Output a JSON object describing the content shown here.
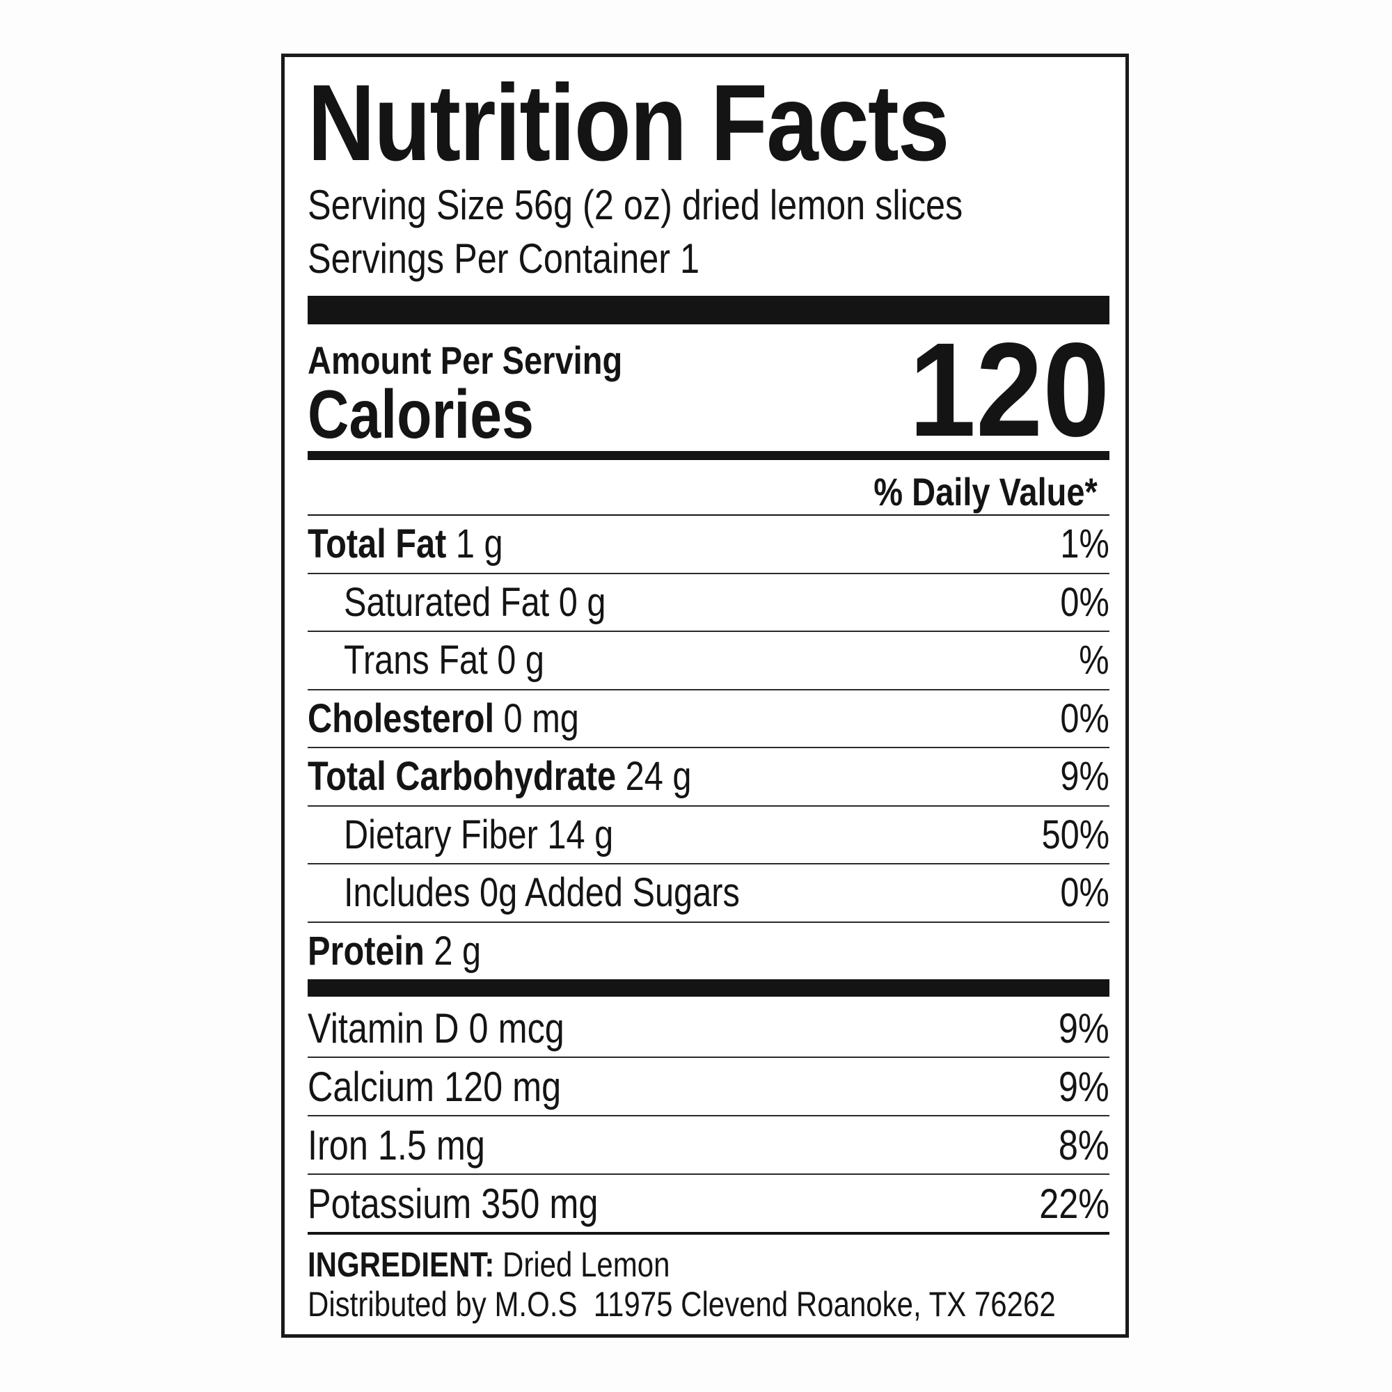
{
  "title": "Nutrition Facts",
  "serving_size": "Serving Size 56g (2 oz) dried lemon slices",
  "servings_per_container": "Servings Per Container 1",
  "amount_per_serving": "Amount Per Serving",
  "calories_label": "Calories",
  "calories_value": "120",
  "daily_value_header": "% Daily Value*",
  "nutrients": [
    {
      "name": "Total Fat",
      "amount": "1 g",
      "dv": "1%",
      "bold": true,
      "indent": false
    },
    {
      "name": "Saturated Fat",
      "amount": "0 g",
      "dv": "0%",
      "bold": false,
      "indent": true
    },
    {
      "name": "Trans Fat",
      "amount": "0 g",
      "dv": "%",
      "bold": false,
      "indent": true
    },
    {
      "name": "Cholesterol",
      "amount": "0 mg",
      "dv": "0%",
      "bold": true,
      "indent": false
    },
    {
      "name": "Total Carbohydrate",
      "amount": "24 g",
      "dv": "9%",
      "bold": true,
      "indent": false
    },
    {
      "name": "Dietary Fiber",
      "amount": "14 g",
      "dv": "50%",
      "bold": false,
      "indent": true
    },
    {
      "name": "Includes",
      "amount": "0g Added Sugars",
      "dv": "0%",
      "bold": false,
      "indent": true
    },
    {
      "name": "Protein",
      "amount": "2 g",
      "dv": "",
      "bold": true,
      "indent": false
    }
  ],
  "vitamins": [
    {
      "label": "Vitamin D 0 mcg",
      "dv": "9%"
    },
    {
      "label": "Calcium 120 mg",
      "dv": "9%"
    },
    {
      "label": "Iron 1.5 mg",
      "dv": "8%"
    },
    {
      "label": "Potassium 350 mg",
      "dv": "22%"
    }
  ],
  "ingredient_label": "INGREDIENT:",
  "ingredient_value": "Dried Lemon",
  "distributor": "Distributed by M.O.S  11975 Clevend Roanoke, TX 76262"
}
